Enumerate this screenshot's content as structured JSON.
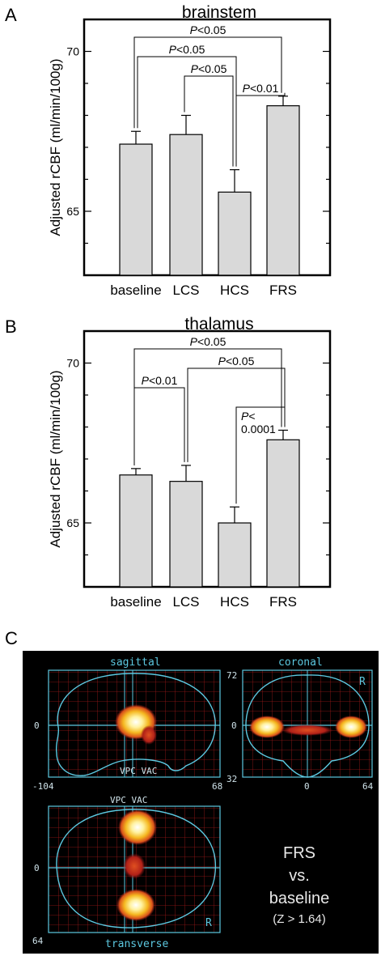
{
  "panels": {
    "a_letter": "A",
    "b_letter": "B",
    "c_letter": "C"
  },
  "chart_data": [
    {
      "type": "bar",
      "title": "brainstem",
      "ylabel": "Adjusted rCBF (ml/min/100g)",
      "categories": [
        "baseline",
        "LCS",
        "HCS",
        "FRS"
      ],
      "values": [
        67.1,
        67.4,
        65.6,
        68.3
      ],
      "errors": [
        0.4,
        0.6,
        0.7,
        0.3
      ],
      "ylim": [
        63,
        71
      ],
      "yticks": [
        65,
        70
      ],
      "comparisons": [
        {
          "from": 0,
          "to": 3,
          "label": "P<0.05"
        },
        {
          "from": 0,
          "to": 2,
          "label": "P<0.05"
        },
        {
          "from": 1,
          "to": 2,
          "label": "P<0.05"
        },
        {
          "from": 2,
          "to": 3,
          "label": "P<0.01"
        }
      ],
      "bar_color": "#d9d9d9"
    },
    {
      "type": "bar",
      "title": "thalamus",
      "ylabel": "Adjusted rCBF (ml/min/100g)",
      "categories": [
        "baseline",
        "LCS",
        "HCS",
        "FRS"
      ],
      "values": [
        66.5,
        66.3,
        65.0,
        67.6
      ],
      "errors": [
        0.2,
        0.5,
        0.5,
        0.3
      ],
      "ylim": [
        63,
        71
      ],
      "yticks": [
        65,
        70
      ],
      "comparisons": [
        {
          "from": 0,
          "to": 3,
          "label": "P<0.05"
        },
        {
          "from": 1,
          "to": 3,
          "label": "P<0.05"
        },
        {
          "from": 0,
          "to": 1,
          "label": "P<0.01"
        },
        {
          "from": 2,
          "to": 3,
          "label": "P<\n0.0001"
        }
      ],
      "bar_color": "#d9d9d9"
    }
  ],
  "brain_map": {
    "sagittal_label": "sagittal",
    "coronal_label": "coronal",
    "transverse_label": "transverse",
    "sagittal_vpc_vac": "VPC VAC",
    "transverse_vpc_vac": "VPC VAC",
    "sag_y0": "0",
    "sag_x_left": "-104",
    "sag_x_right": "68",
    "cor_top": "72",
    "cor_y0": "0",
    "cor_bottom": "32",
    "cor_x0": "0",
    "cor_x_right": "64",
    "cor_r": "R",
    "trans_y0": "0",
    "trans_bottom": "64",
    "trans_r": "R",
    "caption_line1": "FRS",
    "caption_line2": "vs.",
    "caption_line3": "baseline",
    "caption_line4": "(Z > 1.64)",
    "background_color": "#000000",
    "outline_color": "#5cc8e0",
    "grid_color": "#a01818"
  }
}
